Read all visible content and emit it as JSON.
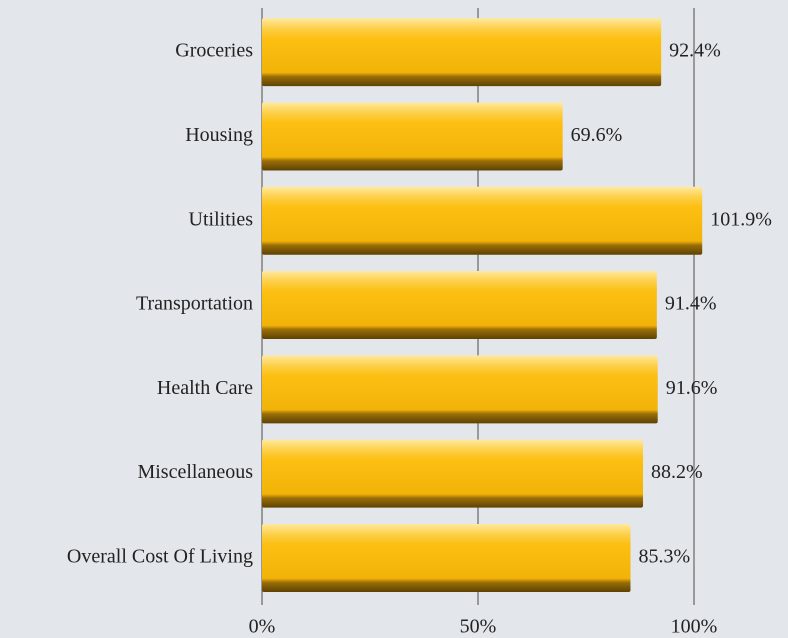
{
  "chart_data": {
    "type": "hbar",
    "categories": [
      "Groceries",
      "Housing",
      "Utilities",
      "Transportation",
      "Health Care",
      "Miscellaneous",
      "Overall Cost Of Living"
    ],
    "values": [
      92.4,
      69.6,
      101.9,
      91.4,
      91.6,
      88.2,
      85.3
    ],
    "value_labels": [
      "92.4%",
      "69.6%",
      "101.9%",
      "91.4%",
      "91.6%",
      "88.2%",
      "85.3%"
    ],
    "color": "#fcbf12",
    "xlim": [
      0,
      120
    ],
    "xticks": [
      {
        "value": 0,
        "label": "0%"
      },
      {
        "value": 50,
        "label": "50%"
      },
      {
        "value": 100,
        "label": "100%"
      }
    ],
    "grid": true
  }
}
